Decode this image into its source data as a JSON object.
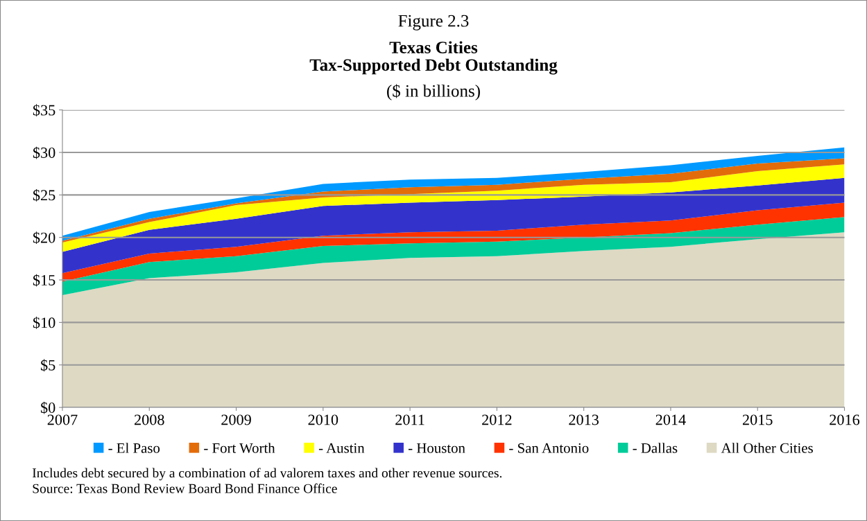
{
  "chart_data": {
    "type": "area",
    "stacked": true,
    "title": "Texas Cities\nTax-Supported Debt Outstanding",
    "subtitle": "($ in billions)",
    "annotations": [
      "Figure 2.3",
      "Includes debt secured by a combination of ad valorem taxes and other revenue sources.",
      "Source: Texas Bond Review Board Bond Finance Office"
    ],
    "x": [
      2007,
      2008,
      2009,
      2010,
      2011,
      2012,
      2013,
      2014,
      2015,
      2016
    ],
    "xlim": [
      2007,
      2016
    ],
    "xticks": [
      2007,
      2008,
      2009,
      2010,
      2011,
      2012,
      2013,
      2014,
      2015,
      2016
    ],
    "ylim": [
      0,
      35
    ],
    "yticks": [
      {
        "value": 0,
        "label": "$0"
      },
      {
        "value": 5,
        "label": "$5"
      },
      {
        "value": 10,
        "label": "$10"
      },
      {
        "value": 15,
        "label": "$15"
      },
      {
        "value": 20,
        "label": "$20"
      },
      {
        "value": 25,
        "label": "$25"
      },
      {
        "value": 30,
        "label": "$30"
      },
      {
        "value": 35,
        "label": "$35"
      }
    ],
    "grid": "y",
    "legend": "bottom",
    "series": [
      {
        "name": "All Other Cities",
        "color": "#ddd9c3",
        "values": [
          13.2,
          15.2,
          15.9,
          17.0,
          17.6,
          17.8,
          18.4,
          18.9,
          19.8,
          20.6
        ]
      },
      {
        "name": "- Dallas",
        "color": "#00cc99",
        "values": [
          1.6,
          1.9,
          1.9,
          2.0,
          1.7,
          1.7,
          1.6,
          1.6,
          1.7,
          1.8
        ]
      },
      {
        "name": "- San Antonio",
        "color": "#ff3300",
        "values": [
          1.0,
          1.0,
          1.1,
          1.2,
          1.3,
          1.3,
          1.5,
          1.5,
          1.7,
          1.7
        ]
      },
      {
        "name": "- Houston",
        "color": "#3333cc",
        "values": [
          2.5,
          2.8,
          3.3,
          3.5,
          3.5,
          3.6,
          3.3,
          3.3,
          2.9,
          2.9
        ]
      },
      {
        "name": "- Austin",
        "color": "#ffff00",
        "values": [
          1.1,
          0.9,
          1.6,
          1.0,
          1.0,
          1.1,
          1.4,
          1.2,
          1.7,
          1.6
        ]
      },
      {
        "name": "- Fort Worth",
        "color": "#e36c0a",
        "values": [
          0.2,
          0.4,
          0.2,
          0.7,
          0.8,
          0.7,
          0.7,
          1.0,
          0.9,
          0.7
        ]
      },
      {
        "name": "- El Paso",
        "color": "#0099ff",
        "values": [
          0.6,
          0.8,
          0.6,
          0.9,
          0.9,
          0.8,
          0.8,
          1.0,
          0.9,
          1.3
        ]
      }
    ]
  }
}
